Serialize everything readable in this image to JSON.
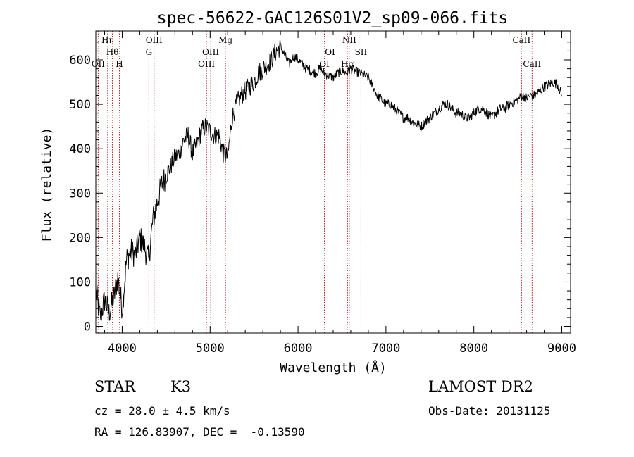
{
  "chart_data": {
    "type": "line",
    "title": "spec-56622-GAC126S01V2_sp09-066.fits",
    "xlabel": "Wavelength (Å)",
    "ylabel": "Flux (relative)",
    "xlim": [
      3700,
      9100
    ],
    "ylim": [
      -15,
      665
    ],
    "xticks": [
      4000,
      5000,
      6000,
      7000,
      8000,
      9000
    ],
    "yticks": [
      0,
      100,
      200,
      300,
      400,
      500,
      600
    ],
    "grid": false,
    "series_color": "#000000",
    "line_marker_color": "#b22222",
    "series": [
      {
        "x": [
          3700,
          3750,
          3800,
          3850,
          3900,
          3950,
          4000,
          4050,
          4100,
          4150,
          4200,
          4250,
          4300,
          4350,
          4400,
          4450,
          4500,
          4550,
          4600,
          4650,
          4700,
          4750,
          4800,
          4850,
          4900,
          4950,
          5000,
          5050,
          5100,
          5150,
          5200,
          5250,
          5300,
          5350,
          5400,
          5450,
          5500,
          5550,
          5600,
          5650,
          5700,
          5750,
          5800,
          5850,
          5900,
          5950,
          6000,
          6050,
          6100,
          6150,
          6200,
          6250,
          6300,
          6350,
          6400,
          6450,
          6500,
          6550,
          6600,
          6650,
          6700,
          6750,
          6800,
          6850,
          6900,
          6950,
          7000,
          7050,
          7100,
          7150,
          7200,
          7250,
          7300,
          7350,
          7400,
          7450,
          7500,
          7550,
          7600,
          7650,
          7700,
          7750,
          7800,
          7850,
          7900,
          7950,
          8000,
          8050,
          8100,
          8150,
          8200,
          8250,
          8300,
          8350,
          8400,
          8450,
          8500,
          8550,
          8600,
          8650,
          8700,
          8750,
          8800,
          8850,
          8900,
          8950,
          9000
        ],
        "y": [
          80,
          20,
          60,
          30,
          60,
          110,
          40,
          150,
          170,
          160,
          200,
          180,
          150,
          240,
          280,
          320,
          340,
          360,
          380,
          390,
          420,
          430,
          390,
          410,
          440,
          450,
          440,
          430,
          430,
          390,
          380,
          470,
          500,
          520,
          530,
          540,
          550,
          570,
          580,
          590,
          600,
          620,
          630,
          610,
          590,
          610,
          600,
          590,
          580,
          575,
          570,
          580,
          570,
          565,
          560,
          570,
          575,
          570,
          580,
          575,
          570,
          565,
          560,
          540,
          520,
          510,
          500,
          500,
          490,
          480,
          470,
          470,
          460,
          455,
          450,
          460,
          470,
          480,
          490,
          500,
          500,
          490,
          480,
          480,
          470,
          470,
          480,
          490,
          490,
          480,
          470,
          480,
          490,
          490,
          500,
          505,
          510,
          520,
          515,
          520,
          520,
          530,
          540,
          545,
          550,
          545,
          520
        ]
      }
    ],
    "line_markers": [
      {
        "label": "Hη",
        "x": 3835,
        "row": 0
      },
      {
        "label": "Hθ",
        "x": 3889,
        "row": 1
      },
      {
        "label": "OII",
        "x": 3727,
        "row": 2
      },
      {
        "label": "H",
        "x": 3968,
        "row": 2
      },
      {
        "label": "OIII",
        "x": 4363,
        "row": 0
      },
      {
        "label": "G",
        "x": 4304,
        "row": 1
      },
      {
        "label": "Mg",
        "x": 5175,
        "row": 0
      },
      {
        "label": "OIII",
        "x": 5007,
        "row": 1
      },
      {
        "label": "OIII",
        "x": 4959,
        "row": 2
      },
      {
        "label": "NII",
        "x": 6583,
        "row": 0
      },
      {
        "label": "OI",
        "x": 6364,
        "row": 1
      },
      {
        "label": "SII",
        "x": 6716,
        "row": 1
      },
      {
        "label": "OI",
        "x": 6300,
        "row": 2
      },
      {
        "label": "Hα",
        "x": 6563,
        "row": 2
      },
      {
        "label": "CaII",
        "x": 8542,
        "row": 0
      },
      {
        "label": "CaII",
        "x": 8662,
        "row": 2
      }
    ]
  },
  "info": {
    "object_class": "STAR",
    "subclass": "K3",
    "survey": "LAMOST DR2",
    "redshift": "cz = 28.0 ± 4.5 km/s",
    "obs_date": "Obs-Date: 20131125",
    "coords": "RA = 126.83907, DEC =  -0.13590"
  }
}
